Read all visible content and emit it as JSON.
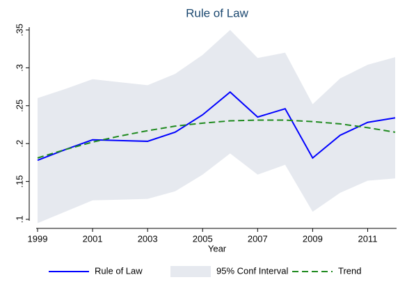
{
  "chart_data": {
    "type": "line",
    "title": "Rule of Law",
    "x_label": "Year",
    "x": [
      1999,
      2000,
      2001,
      2002,
      2003,
      2004,
      2005,
      2006,
      2007,
      2008,
      2009,
      2010,
      2011,
      2012
    ],
    "series": [
      {
        "name": "Rule of Law",
        "color": "#0000ff",
        "values": [
          0.178,
          0.192,
          0.205,
          0.204,
          0.203,
          0.215,
          0.238,
          0.268,
          0.235,
          0.246,
          0.181,
          0.211,
          0.228,
          0.234
        ]
      },
      {
        "name": "95% Conf Interval",
        "color": "#e6e9ef",
        "upper": [
          0.26,
          0.272,
          0.285,
          0.281,
          0.277,
          0.292,
          0.317,
          0.35,
          0.313,
          0.32,
          0.252,
          0.286,
          0.304,
          0.314
        ],
        "lower": [
          0.095,
          0.11,
          0.125,
          0.126,
          0.127,
          0.137,
          0.159,
          0.187,
          0.159,
          0.172,
          0.11,
          0.135,
          0.151,
          0.154
        ]
      },
      {
        "name": "Trend",
        "color": "#1f8a1f",
        "dashed": true,
        "values": [
          0.181,
          0.192,
          0.202,
          0.21,
          0.217,
          0.223,
          0.227,
          0.23,
          0.231,
          0.231,
          0.229,
          0.226,
          0.221,
          0.215
        ]
      }
    ],
    "xlim": [
      1999,
      2012
    ],
    "xticks": [
      1999,
      2001,
      2003,
      2005,
      2007,
      2009,
      2011
    ],
    "ylim": [
      0.1,
      0.35
    ],
    "yticks": [
      {
        "value": 0.1,
        "label": ".1"
      },
      {
        "value": 0.15,
        "label": ".15"
      },
      {
        "value": 0.2,
        "label": ".2"
      },
      {
        "value": 0.25,
        "label": ".25"
      },
      {
        "value": 0.3,
        "label": ".3"
      },
      {
        "value": 0.35,
        "label": ".35"
      }
    ],
    "grid": false,
    "legend": "bottom"
  }
}
